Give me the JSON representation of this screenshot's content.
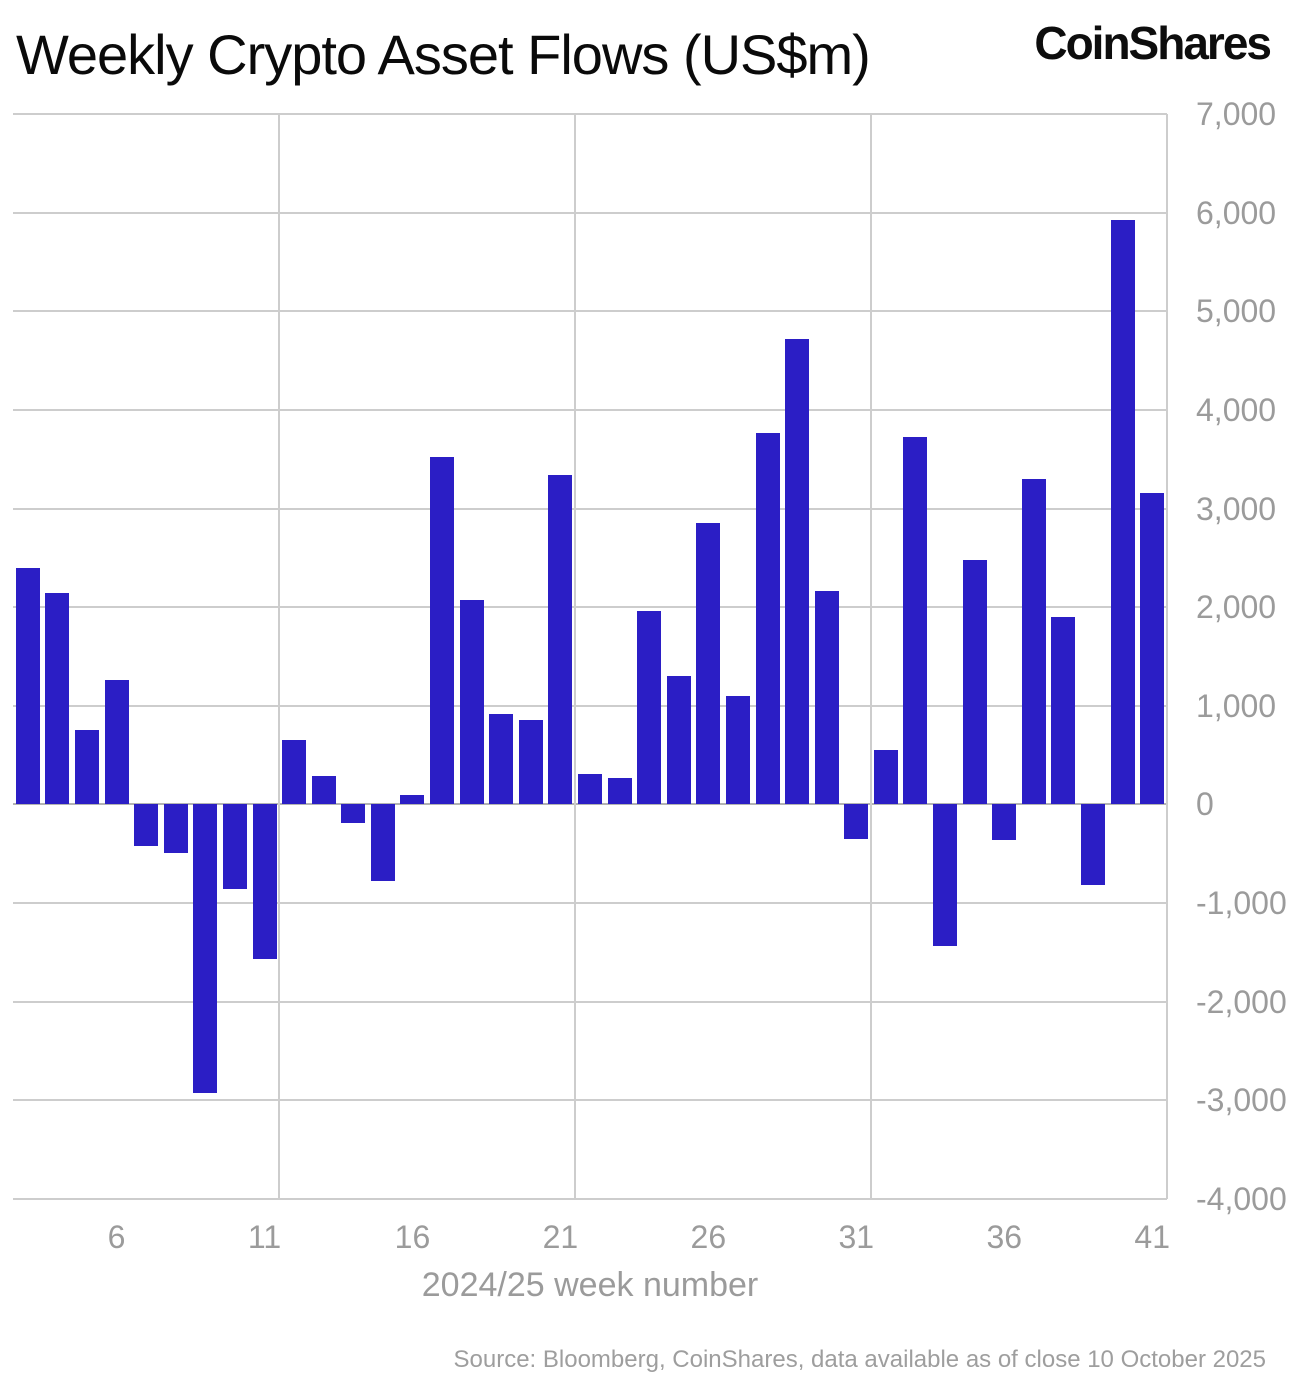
{
  "header": {
    "title": "Weekly Crypto Asset Flows (US$m)",
    "brand": "CoinShares"
  },
  "chart_data": {
    "type": "bar",
    "title": "Weekly Crypto Asset Flows (US$m)",
    "xlabel": "2024/25 week number",
    "ylabel": "",
    "bar_color": "#2b1ec5",
    "grid": true,
    "legend_position": "none",
    "x_range": [
      2.5,
      41.5
    ],
    "ylim": [
      -4000,
      7000
    ],
    "x": [
      3,
      4,
      5,
      6,
      7,
      8,
      9,
      10,
      11,
      12,
      13,
      14,
      15,
      16,
      17,
      18,
      19,
      20,
      21,
      22,
      23,
      24,
      25,
      26,
      27,
      28,
      29,
      30,
      31,
      32,
      33,
      34,
      35,
      36,
      37,
      38,
      39,
      40,
      41
    ],
    "values": [
      2400,
      2140,
      750,
      1260,
      -420,
      -490,
      -2930,
      -860,
      -1570,
      650,
      290,
      -190,
      -780,
      100,
      3520,
      2070,
      920,
      860,
      3340,
      310,
      270,
      1960,
      1300,
      2850,
      1100,
      3770,
      4720,
      2160,
      -350,
      550,
      3730,
      -1430,
      2480,
      -360,
      3300,
      1900,
      -820,
      5930,
      3160
    ],
    "yticks": [
      {
        "value": 7000,
        "label": "7,000"
      },
      {
        "value": 6000,
        "label": "6,000"
      },
      {
        "value": 5000,
        "label": "5,000"
      },
      {
        "value": 4000,
        "label": "4,000"
      },
      {
        "value": 3000,
        "label": "3,000"
      },
      {
        "value": 2000,
        "label": "2,000"
      },
      {
        "value": 1000,
        "label": "1,000"
      },
      {
        "value": 0,
        "label": "0"
      },
      {
        "value": -1000,
        "label": "-1,000"
      },
      {
        "value": -2000,
        "label": "-2,000"
      },
      {
        "value": -3000,
        "label": "-3,000"
      },
      {
        "value": -4000,
        "label": "-4,000"
      }
    ],
    "xticks": [
      {
        "value": 6,
        "label": "6"
      },
      {
        "value": 11,
        "label": "11"
      },
      {
        "value": 16,
        "label": "16"
      },
      {
        "value": 21,
        "label": "21"
      },
      {
        "value": 26,
        "label": "26"
      },
      {
        "value": 31,
        "label": "31"
      },
      {
        "value": 36,
        "label": "36"
      },
      {
        "value": 41,
        "label": "41"
      }
    ],
    "x_gridlines_at": [
      11.5,
      21.5,
      31.5,
      41.5
    ]
  },
  "footer": {
    "source": "Source: Bloomberg, CoinShares, data available as of close 10 October 2025"
  }
}
